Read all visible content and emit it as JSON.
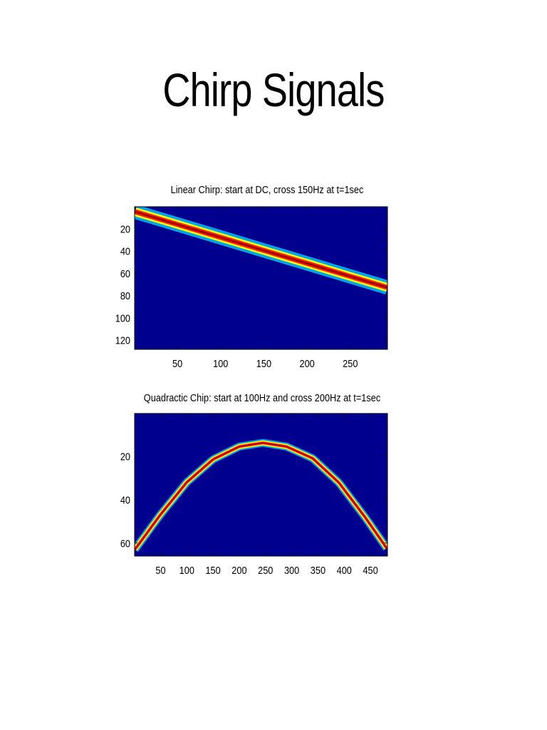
{
  "slide": {
    "title": "Chirp Signals"
  },
  "colors": {
    "background": "#00008f",
    "ridge_outer": "#00d0ff",
    "ridge_mid": "#ffff00",
    "ridge_inner": "#ff2000",
    "ridge_core": "#a00000"
  },
  "chart_data": [
    {
      "type": "heatmap",
      "title": "Linear Chirp: start at DC, cross 150Hz at t=1sec",
      "xlabel": "",
      "ylabel": "",
      "xlim": [
        0.5,
        293
      ],
      "ylim": [
        0.5,
        128.5
      ],
      "y_reversed": true,
      "xticks": [
        50,
        100,
        150,
        200,
        250
      ],
      "yticks": [
        20,
        40,
        60,
        80,
        100,
        120
      ],
      "colormap": "jet",
      "ridge": {
        "x": [
          1,
          50,
          100,
          150,
          200,
          250,
          293
        ],
        "y": [
          5,
          16.4,
          28,
          39.7,
          51.3,
          63,
          73
        ]
      }
    },
    {
      "type": "heatmap",
      "title": "Quadractic Chip: start at 100Hz and cross 200Hz at t=1sec",
      "xlabel": "",
      "ylabel": "",
      "xlim": [
        0.5,
        482.5
      ],
      "ylim": [
        0.5,
        66
      ],
      "y_reversed": true,
      "xticks": [
        50,
        100,
        150,
        200,
        250,
        300,
        350,
        400,
        450
      ],
      "yticks": [
        20,
        40,
        60
      ],
      "colormap": "jet",
      "ridge": {
        "x": [
          1,
          50,
          100,
          150,
          200,
          245,
          290,
          340,
          390,
          440,
          482
        ],
        "y": [
          63,
          46.9,
          32.1,
          21.6,
          15.7,
          14,
          15.7,
          21.1,
          32.3,
          48.2,
          62.7
        ]
      }
    }
  ]
}
